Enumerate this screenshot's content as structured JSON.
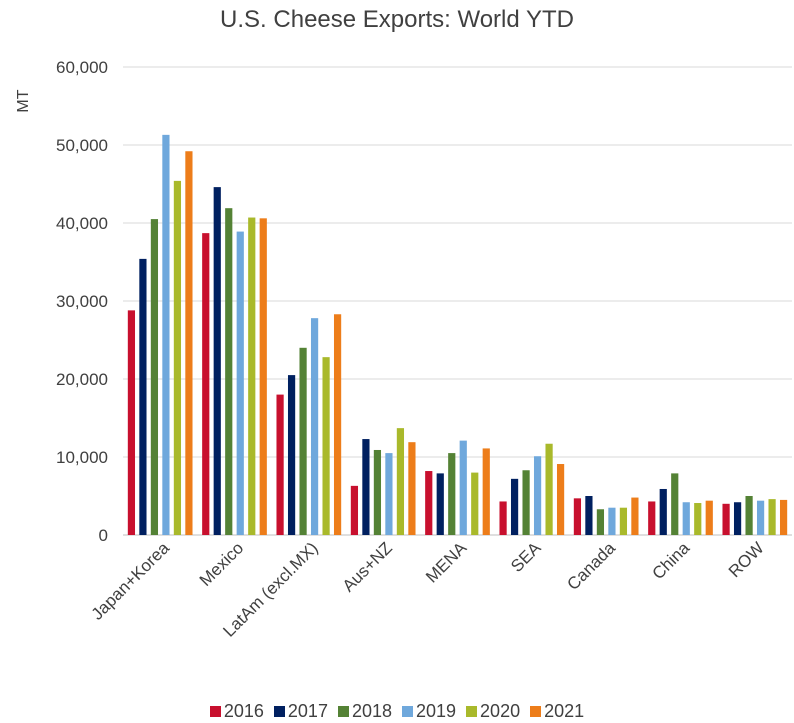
{
  "chart_data": {
    "type": "bar",
    "title": "U.S. Cheese Exports: World YTD",
    "ylabel": "MT",
    "xlabel": "",
    "ylim": [
      0,
      60000
    ],
    "yticks": [
      "0",
      "10,000",
      "20,000",
      "30,000",
      "40,000",
      "50,000",
      "60,000"
    ],
    "categories": [
      "Japan+Korea",
      "Mexico",
      "LatAm (excl.MX)",
      "Aus+NZ",
      "MENA",
      "SEA",
      "Canada",
      "China",
      "ROW"
    ],
    "series": [
      {
        "name": "2016",
        "color": "#c8102e",
        "values": [
          28800,
          38700,
          18000,
          6300,
          8200,
          4300,
          4700,
          4300,
          4000
        ]
      },
      {
        "name": "2017",
        "color": "#002060",
        "values": [
          35400,
          44600,
          20500,
          12300,
          7900,
          7200,
          5000,
          5900,
          4200
        ]
      },
      {
        "name": "2018",
        "color": "#548235",
        "values": [
          40500,
          41900,
          24000,
          10900,
          10500,
          8300,
          3300,
          7900,
          5000
        ]
      },
      {
        "name": "2019",
        "color": "#6fa8dc",
        "values": [
          51300,
          38900,
          27800,
          10500,
          12100,
          10100,
          3500,
          4200,
          4400
        ]
      },
      {
        "name": "2020",
        "color": "#a9b92b",
        "values": [
          45400,
          40700,
          22800,
          13700,
          8000,
          11700,
          3500,
          4100,
          4600
        ]
      },
      {
        "name": "2021",
        "color": "#ed7d1a",
        "values": [
          49200,
          40600,
          28300,
          11900,
          11100,
          9100,
          4800,
          4400,
          4500
        ]
      }
    ],
    "grid": true,
    "legend_position": "bottom"
  }
}
